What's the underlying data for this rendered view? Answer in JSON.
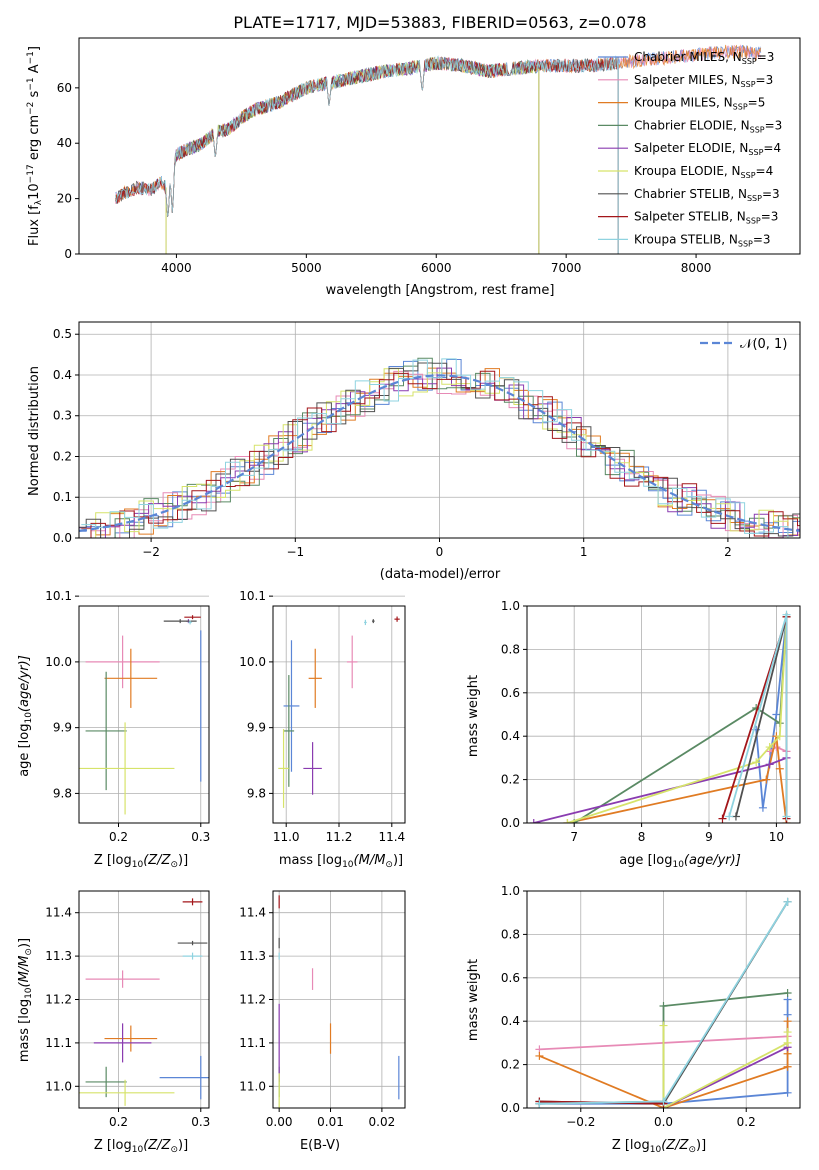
{
  "figure_title": "PLATE=1717, MJD=53883, FIBERID=0563, z=0.078",
  "colors": {
    "Chabrier MILES": "#5b86d6",
    "Salpeter MILES": "#e78ab6",
    "Kroupa MILES": "#e07b23",
    "Chabrier ELODIE": "#5a8a64",
    "Salpeter ELODIE": "#8a3cb0",
    "Kroupa ELODIE": "#d6e36a",
    "Chabrier STELIB": "#505050",
    "Salpeter STELIB": "#a3161a",
    "Kroupa STELIB": "#8fd3e0"
  },
  "chart_data": [
    {
      "id": "spectrum",
      "type": "line",
      "xlabel": "wavelength [Angstrom, rest frame]",
      "ylabel_main": "Flux [f",
      "ylabel_sub": "λ",
      "ylabel_rest": "10",
      "ylabel_exp1": "−17",
      "ylabel_mid": " erg cm",
      "ylabel_exp2": "−2",
      "ylabel_s": " s",
      "ylabel_exp3": "−1",
      "ylabel_end": " A",
      "ylabel_exp4": "−1",
      "ylabel_close": "]",
      "xlim": [
        3250,
        8800
      ],
      "ylim": [
        0,
        78
      ],
      "xticks": [
        4000,
        5000,
        6000,
        7000,
        8000
      ],
      "yticks": [
        0,
        20,
        40,
        60
      ],
      "legend_position": "upper-right",
      "legend": [
        {
          "model": "Chabrier MILES",
          "prefix": "Chabrier MILES, N",
          "sub": "SSP",
          "suffix": "=3"
        },
        {
          "model": "Salpeter MILES",
          "prefix": "Salpeter MILES, N",
          "sub": "SSP",
          "suffix": "=3"
        },
        {
          "model": "Kroupa MILES",
          "prefix": "Kroupa MILES, N",
          "sub": "SSP",
          "suffix": "=5"
        },
        {
          "model": "Chabrier ELODIE",
          "prefix": "Chabrier ELODIE, N",
          "sub": "SSP",
          "suffix": "=3"
        },
        {
          "model": "Salpeter ELODIE",
          "prefix": "Salpeter ELODIE, N",
          "sub": "SSP",
          "suffix": "=4"
        },
        {
          "model": "Kroupa ELODIE",
          "prefix": "Kroupa ELODIE, N",
          "sub": "SSP",
          "suffix": "=4"
        },
        {
          "model": "Chabrier STELIB",
          "prefix": "Chabrier STELIB, N",
          "sub": "SSP",
          "suffix": "=3"
        },
        {
          "model": "Salpeter STELIB",
          "prefix": "Salpeter STELIB, N",
          "sub": "SSP",
          "suffix": "=3"
        },
        {
          "model": "Kroupa STELIB",
          "prefix": "Kroupa STELIB, N",
          "sub": "SSP",
          "suffix": "=3"
        }
      ],
      "continuum": {
        "x": [
          3530,
          3600,
          3700,
          3800,
          3880,
          3920,
          3960,
          4000,
          4100,
          4200,
          4300,
          4400,
          4500,
          4600,
          4800,
          5000,
          5200,
          5400,
          5600,
          5800,
          6000,
          6200,
          6400,
          6600,
          6800,
          7000,
          7200,
          7400,
          7600,
          7800,
          8000,
          8200,
          8400,
          8500
        ],
        "y": [
          20,
          22,
          24,
          23,
          26,
          24,
          28,
          36,
          38,
          40,
          44,
          45,
          49,
          52,
          55,
          60,
          62,
          64,
          66,
          67,
          69,
          68,
          66,
          67,
          68,
          68,
          68,
          69,
          70,
          71,
          72,
          73,
          73,
          72
        ]
      },
      "dips": [
        {
          "x": 3934,
          "y": 12
        },
        {
          "x": 3969,
          "y": 14
        },
        {
          "x": 4300,
          "y": 34
        },
        {
          "x": 5175,
          "y": 53
        },
        {
          "x": 5892,
          "y": 58
        },
        {
          "x": 6563,
          "y": 64
        }
      ],
      "cutoffs": [
        {
          "model": "Kroupa ELODIE",
          "x": 3920,
          "side": "below"
        },
        {
          "model": "Chabrier ELODIE",
          "x": 3920,
          "side": "below"
        },
        {
          "model": "Salpeter ELODIE",
          "x": 3920,
          "side": "below"
        },
        {
          "model": "Kroupa ELODIE",
          "x": 6790,
          "side": "above"
        },
        {
          "model": "Chabrier ELODIE",
          "x": 6790,
          "side": "above"
        },
        {
          "model": "Salpeter ELODIE",
          "x": 6790,
          "side": "above"
        },
        {
          "model": "Salpeter STELIB",
          "x": 7400,
          "side": "above"
        },
        {
          "model": "Kroupa STELIB",
          "x": 7400,
          "side": "above"
        },
        {
          "model": "Chabrier STELIB",
          "x": 7400,
          "side": "above"
        }
      ]
    },
    {
      "id": "residuals",
      "type": "step",
      "xlabel": "(data-model)/error",
      "ylabel": "Normed distribution",
      "xlim": [
        -2.5,
        2.5
      ],
      "ylim": [
        0,
        0.53
      ],
      "xticks": [
        -2,
        -1,
        0,
        1,
        2
      ],
      "yticks": [
        0.0,
        0.1,
        0.2,
        0.3,
        0.4,
        0.5
      ],
      "grid": true,
      "legend_position": "upper-right",
      "gaussian_label": "𝒩(0, 1)",
      "gaussian_color": "#5b86d6",
      "bin_width": 0.1
    },
    {
      "id": "z-age",
      "type": "errorbar",
      "xlabel_main": "Z [log",
      "xlabel_sub": "10",
      "xlabel_end": "(Z/Z",
      "xlabel_sun": "⊙",
      "xlabel_close": ")]",
      "ylabel_main": "age  [log",
      "ylabel_sub": "10",
      "ylabel_end": "(age/yr)]",
      "xlim": [
        0.152,
        0.31
      ],
      "ylim": [
        9.755,
        10.085
      ],
      "xticks": [
        0.2,
        0.3
      ],
      "yticks": [
        9.8,
        9.9,
        10.0,
        10.1
      ],
      "grid": true,
      "points": [
        {
          "model": "Chabrier MILES",
          "x": 0.3,
          "xerr": 0.0,
          "y": 9.933,
          "yerr": 0.115
        },
        {
          "model": "Salpeter MILES",
          "x": 0.205,
          "xerr": 0.045,
          "y": 10.0,
          "yerr": 0.04
        },
        {
          "model": "Kroupa MILES",
          "x": 0.215,
          "xerr": 0.032,
          "y": 9.975,
          "yerr": 0.045
        },
        {
          "model": "Chabrier ELODIE",
          "x": 0.185,
          "xerr": 0.025,
          "y": 9.895,
          "yerr": 0.09
        },
        {
          "model": "Salpeter ELODIE",
          "x": 0.285,
          "xerr": 0.003,
          "y": 10.062,
          "yerr": 0.003
        },
        {
          "model": "Kroupa ELODIE",
          "x": 0.208,
          "xerr": 0.06,
          "y": 9.838,
          "yerr": 0.07
        },
        {
          "model": "Chabrier STELIB",
          "x": 0.275,
          "xerr": 0.02,
          "y": 10.062,
          "yerr": 0.003
        },
        {
          "model": "Salpeter STELIB",
          "x": 0.29,
          "xerr": 0.01,
          "y": 10.068,
          "yerr": 0.003
        },
        {
          "model": "Kroupa STELIB",
          "x": 0.287,
          "xerr": 0.002,
          "y": 10.06,
          "yerr": 0.003
        }
      ]
    },
    {
      "id": "mass-age",
      "type": "errorbar",
      "xlabel_main": "mass [log",
      "xlabel_sub": "10",
      "xlabel_end": "(M/M",
      "xlabel_sun": "⊙",
      "xlabel_close": ")]",
      "xlim": [
        10.95,
        11.45
      ],
      "ylim": [
        9.755,
        10.085
      ],
      "xticks": [
        11.0,
        11.2,
        11.4
      ],
      "yticks": [
        9.8,
        9.9,
        10.0,
        10.1
      ],
      "grid": true,
      "points": [
        {
          "model": "Chabrier MILES",
          "x": 11.02,
          "xerr": 0.03,
          "y": 9.933,
          "yerr": 0.1
        },
        {
          "model": "Salpeter MILES",
          "x": 11.25,
          "xerr": 0.02,
          "y": 10.0,
          "yerr": 0.04
        },
        {
          "model": "Kroupa MILES",
          "x": 11.11,
          "xerr": 0.025,
          "y": 9.975,
          "yerr": 0.045
        },
        {
          "model": "Chabrier ELODIE",
          "x": 11.01,
          "xerr": 0.02,
          "y": 9.895,
          "yerr": 0.085
        },
        {
          "model": "Salpeter ELODIE",
          "x": 11.1,
          "xerr": 0.035,
          "y": 9.838,
          "yerr": 0.04
        },
        {
          "model": "Kroupa ELODIE",
          "x": 10.99,
          "xerr": 0.02,
          "y": 9.838,
          "yerr": 0.06
        },
        {
          "model": "Chabrier STELIB",
          "x": 11.33,
          "xerr": 0.005,
          "y": 10.062,
          "yerr": 0.003
        },
        {
          "model": "Salpeter STELIB",
          "x": 11.42,
          "xerr": 0.01,
          "y": 10.065,
          "yerr": 0.004
        },
        {
          "model": "Kroupa STELIB",
          "x": 11.3,
          "xerr": 0.005,
          "y": 10.06,
          "yerr": 0.004
        }
      ]
    },
    {
      "id": "weight-age",
      "type": "line",
      "xlabel_main": "age  [log",
      "xlabel_sub": "10",
      "xlabel_end": "(age/yr)]",
      "ylabel": "mass weight",
      "xlim": [
        6.3,
        10.35
      ],
      "ylim": [
        0,
        1.0
      ],
      "xticks": [
        7,
        8,
        9,
        10
      ],
      "yticks": [
        0.0,
        0.2,
        0.4,
        0.6,
        0.8,
        1.0
      ],
      "grid": true,
      "series": [
        {
          "model": "Chabrier MILES",
          "x": [
            9.7,
            9.8,
            10.0,
            10.15
          ],
          "y": [
            0.43,
            0.07,
            0.5,
            0.95
          ]
        },
        {
          "model": "Salpeter MILES",
          "x": [
            9.9,
            10.0,
            10.15
          ],
          "y": [
            0.33,
            0.35,
            0.33
          ]
        },
        {
          "model": "Kroupa MILES",
          "x": [
            6.9,
            9.85,
            10.0,
            10.05,
            10.15
          ],
          "y": [
            0.0,
            0.2,
            0.4,
            0.25,
            0.0
          ]
        },
        {
          "model": "Chabrier ELODIE",
          "x": [
            7.0,
            9.7,
            10.05,
            10.15
          ],
          "y": [
            0.0,
            0.53,
            0.46,
            0.95
          ]
        },
        {
          "model": "Salpeter ELODIE",
          "x": [
            6.4,
            9.9,
            10.15
          ],
          "y": [
            0.0,
            0.27,
            0.3
          ]
        },
        {
          "model": "Kroupa ELODIE",
          "x": [
            6.9,
            9.7,
            9.9,
            10.05,
            10.15
          ],
          "y": [
            0.0,
            0.28,
            0.35,
            0.4,
            0.95
          ]
        },
        {
          "model": "Chabrier STELIB",
          "x": [
            9.4,
            10.15
          ],
          "y": [
            0.03,
            0.95
          ]
        },
        {
          "model": "Salpeter STELIB",
          "x": [
            9.2,
            10.15,
            10.15
          ],
          "y": [
            0.02,
            0.95,
            0.02
          ]
        },
        {
          "model": "Kroupa STELIB",
          "x": [
            9.3,
            10.15,
            10.15
          ],
          "y": [
            0.03,
            0.96,
            0.03
          ]
        }
      ]
    },
    {
      "id": "z-mass",
      "type": "errorbar",
      "xlabel_main": "Z [log",
      "xlabel_sub": "10",
      "xlabel_end": "(Z/Z",
      "xlabel_sun": "⊙",
      "xlabel_close": ")]",
      "ylabel_main": "mass [log",
      "ylabel_sub": "10",
      "ylabel_end": "(M/M",
      "ylabel_sun": "⊙",
      "ylabel_close": ")]",
      "xlim": [
        0.152,
        0.31
      ],
      "ylim": [
        10.95,
        11.45
      ],
      "xticks": [
        0.2,
        0.3
      ],
      "yticks": [
        11.0,
        11.1,
        11.2,
        11.3,
        11.4
      ],
      "grid": true,
      "points": [
        {
          "model": "Chabrier MILES",
          "x": 0.3,
          "xerr": 0.05,
          "y": 11.02,
          "yerr": 0.05
        },
        {
          "model": "Salpeter MILES",
          "x": 0.205,
          "xerr": 0.045,
          "y": 11.247,
          "yerr": 0.02
        },
        {
          "model": "Kroupa MILES",
          "x": 0.215,
          "xerr": 0.032,
          "y": 11.11,
          "yerr": 0.03
        },
        {
          "model": "Chabrier ELODIE",
          "x": 0.185,
          "xerr": 0.025,
          "y": 11.01,
          "yerr": 0.035
        },
        {
          "model": "Salpeter ELODIE",
          "x": 0.205,
          "xerr": 0.035,
          "y": 11.1,
          "yerr": 0.045
        },
        {
          "model": "Kroupa ELODIE",
          "x": 0.208,
          "xerr": 0.06,
          "y": 10.985,
          "yerr": 0.03
        },
        {
          "model": "Chabrier STELIB",
          "x": 0.29,
          "xerr": 0.018,
          "y": 11.33,
          "yerr": 0.005
        },
        {
          "model": "Salpeter STELIB",
          "x": 0.29,
          "xerr": 0.012,
          "y": 11.425,
          "yerr": 0.008
        },
        {
          "model": "Kroupa STELIB",
          "x": 0.29,
          "xerr": 0.012,
          "y": 11.3,
          "yerr": 0.008
        }
      ]
    },
    {
      "id": "ebv-mass",
      "type": "errorbar",
      "xlabel": "E(B-V)",
      "xlim": [
        -0.0012,
        0.0245
      ],
      "ylim": [
        10.95,
        11.45
      ],
      "xticks": [
        0.0,
        0.01,
        0.02
      ],
      "yticks": [
        11.0,
        11.1,
        11.2,
        11.3,
        11.4
      ],
      "grid": true,
      "points": [
        {
          "model": "Chabrier MILES",
          "x": 0.0233,
          "xerr": 0,
          "y": 11.02,
          "yerr": 0.05
        },
        {
          "model": "Salpeter MILES",
          "x": 0.0065,
          "xerr": 0,
          "y": 11.247,
          "yerr": 0.025
        },
        {
          "model": "Kroupa MILES",
          "x": 0.01,
          "xerr": 0,
          "y": 11.11,
          "yerr": 0.035
        },
        {
          "model": "Chabrier ELODIE",
          "x": 0.0,
          "xerr": 0,
          "y": 11.01,
          "yerr": 0.035
        },
        {
          "model": "Salpeter ELODIE",
          "x": 0.0,
          "xerr": 0,
          "y": 11.1,
          "yerr": 0.09
        },
        {
          "model": "Kroupa ELODIE",
          "x": 0.0,
          "xerr": 0,
          "y": 10.985,
          "yerr": 0.045
        },
        {
          "model": "Chabrier STELIB",
          "x": 0.0,
          "xerr": 0,
          "y": 11.33,
          "yerr": 0.012
        },
        {
          "model": "Salpeter STELIB",
          "x": 0.0,
          "xerr": 0,
          "y": 11.425,
          "yerr": 0.015
        },
        {
          "model": "Kroupa STELIB",
          "x": 0.0,
          "xerr": 0,
          "y": 11.3,
          "yerr": 0.008
        }
      ]
    },
    {
      "id": "weight-z",
      "type": "line",
      "xlabel_main": "Z [log",
      "xlabel_sub": "10",
      "xlabel_end": "(Z/Z",
      "xlabel_sun": "⊙",
      "xlabel_close": ")]",
      "ylabel": "mass weight",
      "xlim": [
        -0.33,
        0.33
      ],
      "ylim": [
        0,
        1.0
      ],
      "xticks": [
        -0.2,
        0.0,
        0.2
      ],
      "yticks": [
        0.0,
        0.2,
        0.4,
        0.6,
        0.8,
        1.0
      ],
      "grid": true,
      "series": [
        {
          "model": "Chabrier MILES",
          "x": [
            -0.3,
            0.0,
            0.3,
            0.3,
            0.3
          ],
          "y": [
            0.02,
            0.02,
            0.07,
            0.5,
            0.43
          ]
        },
        {
          "model": "Salpeter MILES",
          "x": [
            -0.3,
            0.3
          ],
          "y": [
            0.27,
            0.33
          ]
        },
        {
          "model": "Kroupa MILES",
          "x": [
            -0.3,
            0.0,
            0.3,
            0.3,
            0.3
          ],
          "y": [
            0.24,
            0.0,
            0.19,
            0.25,
            0.4
          ]
        },
        {
          "model": "Chabrier ELODIE",
          "x": [
            -0.3,
            0.0,
            0.0,
            0.3
          ],
          "y": [
            0.02,
            0.03,
            0.47,
            0.53
          ]
        },
        {
          "model": "Salpeter ELODIE",
          "x": [
            0.0,
            0.3
          ],
          "y": [
            0.0,
            0.28
          ]
        },
        {
          "model": "Kroupa ELODIE",
          "x": [
            0.0,
            0.0,
            0.3,
            0.3
          ],
          "y": [
            0.38,
            0.0,
            0.3,
            0.35
          ]
        },
        {
          "model": "Chabrier STELIB",
          "x": [
            -0.3,
            0.0,
            0.3
          ],
          "y": [
            0.03,
            0.02,
            0.95
          ]
        },
        {
          "model": "Salpeter STELIB",
          "x": [
            -0.3,
            0.0
          ],
          "y": [
            0.03,
            0.02
          ]
        },
        {
          "model": "Kroupa STELIB",
          "x": [
            -0.3,
            0.0,
            0.3
          ],
          "y": [
            0.02,
            0.03,
            0.95
          ]
        }
      ]
    }
  ]
}
